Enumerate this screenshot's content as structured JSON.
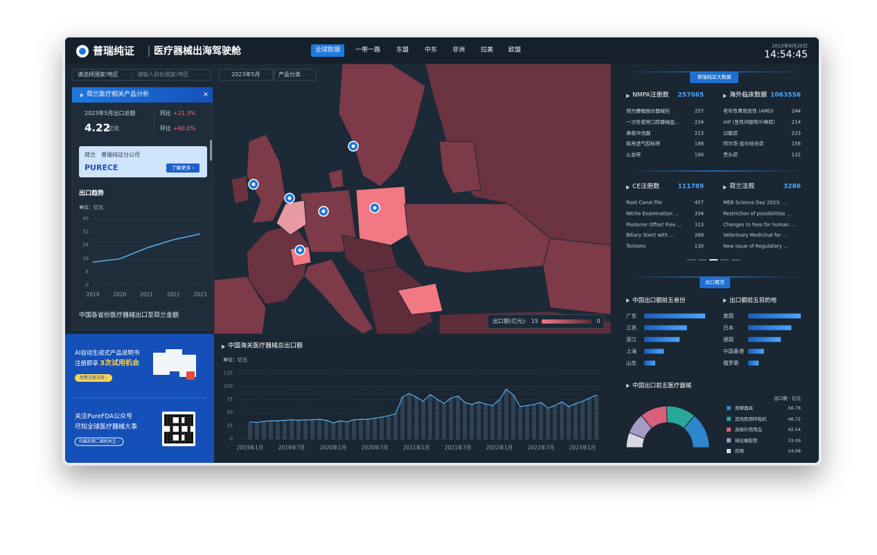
{
  "header": {
    "logo": "普瑞纯证",
    "title": "医疗器械出海驾驶舱",
    "nav": [
      "全球数据",
      "一带一路",
      "东盟",
      "中东",
      "非洲",
      "拉美",
      "欧盟"
    ],
    "date": "2023年6月20日",
    "time": "14:54:45"
  },
  "filters": {
    "country": "请选择国家/地区",
    "search": "请输入目标国家/地区",
    "month": "2023年5月",
    "category": "产品分类"
  },
  "country_panel": {
    "title": "荷兰医疗相关产品分析",
    "close": "×",
    "export_label": "2023年5月出口总额",
    "export_value": 4.22,
    "export_unit": "亿元",
    "yoy_label": "同比",
    "yoy": "+21.3%",
    "mom_label": "环比",
    "mom": "+60.0%",
    "company_country": "荷兰",
    "company_name": "普瑞纯证分公司",
    "brand": "PURECE",
    "more": "了解更多 ›",
    "province_title": "中国各省份医疗器械出口至荷兰金额"
  },
  "map": {
    "legend_title": "出口额(亿元):",
    "legend_max": 15,
    "legend_min": 0
  },
  "promo": {
    "line1": "AI自动生成式产品说明书",
    "line2a": "注册即享",
    "line2b": "3次试用机会",
    "button1": "免费注册试用 ›",
    "line3": "关注PureFDA公众号",
    "line4": "尽知全球医疗器械大事",
    "button2": "扫描右侧二维码关注 ›"
  },
  "stats": {
    "badge": "普瑞纯证大数据",
    "lists": [
      {
        "title": "NMPA注册数",
        "total": 257065,
        "items": [
          {
            "name": "侧方腰椎融合器械包",
            "value": 257
          },
          {
            "name": "一次性使用口腔器械盒...",
            "value": 234
          },
          {
            "name": "鼻部冲洗器",
            "value": 213
          },
          {
            "name": "医用透气胶粘带",
            "value": 198
          },
          {
            "name": "止血带",
            "value": 190
          }
        ]
      },
      {
        "title": "海外临床数据",
        "total": 1063556,
        "items": [
          {
            "name": "老年性黄斑变性 (AMD)",
            "value": 244
          },
          {
            "name": "AIP (急性间歇性卟啉症)",
            "value": 214
          },
          {
            "name": "过敏症",
            "value": 223
          },
          {
            "name": "阿尔茨-加尔综合症",
            "value": 156
          },
          {
            "name": "秃头症",
            "value": 132
          }
        ]
      },
      {
        "title": "CE注册数",
        "total": 111789,
        "items": [
          {
            "name": "Root Canal File",
            "value": 457
          },
          {
            "name": "Nitrile Examination ...",
            "value": 334
          },
          {
            "name": "Posterior Offset Free ...",
            "value": 313
          },
          {
            "name": "Biliary Stent with ...",
            "value": 268
          },
          {
            "name": "Torsions",
            "value": 130
          }
        ]
      },
      {
        "title": "荷兰法规",
        "total": 3286,
        "items": [
          {
            "name": "MEB Science Day 2023: ..."
          },
          {
            "name": "Restriction of possibilities ..."
          },
          {
            "name": "Changes to fees for human ..."
          },
          {
            "name": "Veterinary Medicinal for ..."
          },
          {
            "name": "New issue of Regulatory ..."
          }
        ]
      }
    ]
  },
  "overview_badge": "出口概览",
  "chart_data": [
    {
      "type": "line",
      "title": "出口趋势",
      "unit_label": "单位：亿元",
      "x": [
        2019,
        2020,
        2021,
        2022,
        2023
      ],
      "values": [
        14,
        16,
        22.5,
        27.5,
        31
      ],
      "xlim": [
        2019,
        2023
      ],
      "xticks": [
        2019,
        2020,
        2021,
        2022,
        2023
      ],
      "ylim": [
        0,
        40
      ],
      "yticks": [
        0,
        8,
        16,
        24,
        32,
        40
      ],
      "grid": true,
      "color": "#5aaee8"
    },
    {
      "type": "bar",
      "title": "中国海关医疗器械总出口额",
      "unit_label": "单位：亿元",
      "categories": [
        "2019年1月",
        null,
        null,
        null,
        null,
        null,
        "2019年7月",
        null,
        null,
        null,
        null,
        null,
        "2020年1月",
        null,
        null,
        null,
        null,
        null,
        "2020年7月",
        null,
        null,
        null,
        null,
        null,
        "2021年1月",
        null,
        null,
        null,
        null,
        null,
        "2021年7月",
        null,
        null,
        null,
        null,
        null,
        "2022年1月",
        null,
        null,
        null,
        null,
        null,
        "2022年7月",
        null,
        null,
        null,
        null,
        null,
        "2023年1月",
        null,
        null
      ],
      "values": [
        33,
        32,
        34,
        35,
        35,
        36,
        37,
        36,
        37,
        37,
        38,
        36,
        31,
        35,
        33,
        37,
        38,
        38,
        40,
        42,
        45,
        48,
        80,
        87,
        80,
        72,
        85,
        76,
        68,
        78,
        82,
        70,
        66,
        71,
        67,
        64,
        75,
        95,
        84,
        62,
        64,
        66,
        70,
        59,
        64,
        71,
        62,
        68,
        72,
        78,
        84
      ],
      "ylim": [
        0,
        125
      ],
      "yticks": [
        0,
        25,
        50,
        75,
        100,
        125
      ],
      "grid": true,
      "color": "#34475a",
      "line_color": "#5ab4ef"
    },
    {
      "type": "hbar",
      "title": "中国出口额前五省份",
      "categories": [
        "广东",
        "江苏",
        "浙江",
        "上海",
        "山东"
      ],
      "values": [
        100,
        70,
        58,
        32,
        18
      ],
      "color": "#3a8ee6"
    },
    {
      "type": "hbar",
      "title": "出口额前五目的地",
      "categories": [
        "美国",
        "日本",
        "德国",
        "中国香港",
        "俄罗斯"
      ],
      "values": [
        100,
        82,
        62,
        30,
        20
      ],
      "color": "#3a8ee6"
    },
    {
      "type": "donut",
      "title": "中国出口前五医疗器械",
      "unit_label": "出口额 · 亿元",
      "categories": [
        "按摩器具",
        "其他医用呼吸机",
        "高级针用用品",
        "硫化橡胶管",
        "药棉"
      ],
      "values": [
        56.78,
        46.72,
        42.54,
        33.09,
        24.08
      ],
      "colors": [
        "#2f86cc",
        "#2aa79b",
        "#d9607a",
        "#a59bc4",
        "#d7dbe0"
      ]
    }
  ]
}
